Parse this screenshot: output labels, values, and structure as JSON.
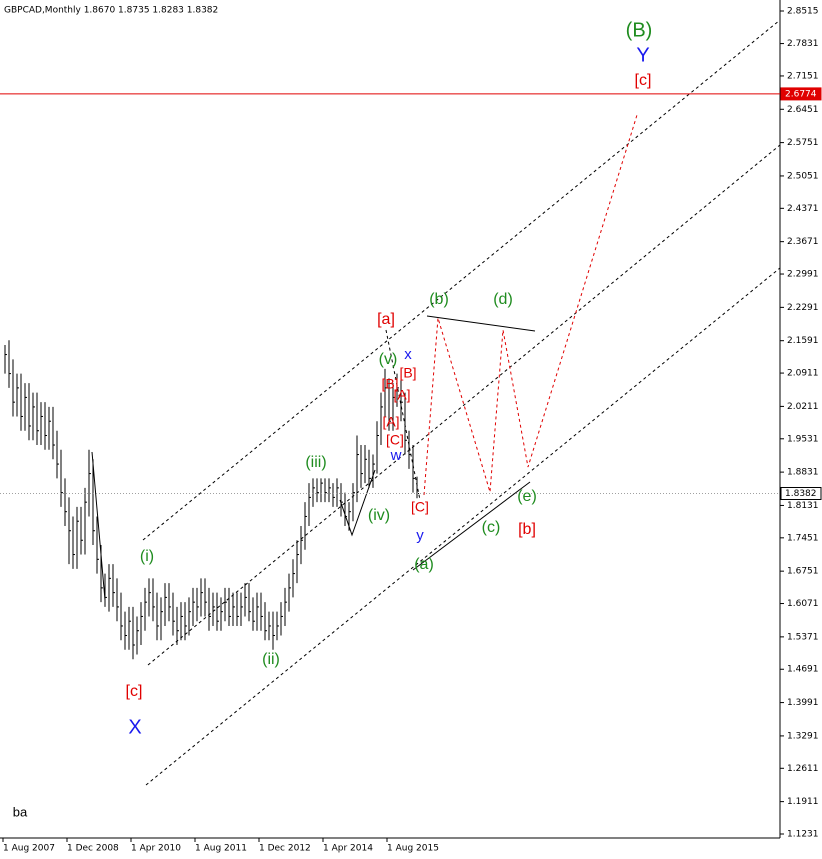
{
  "chart_data": {
    "type": "hlc",
    "header": "GBPCAD,Monthly  1.8670 1.8735 1.8283 1.8382",
    "color": "#000000",
    "high": [
      2.15,
      2.16,
      2.12,
      2.09,
      2.09,
      2.07,
      2.07,
      2.05,
      2.05,
      2.03,
      2.03,
      2.02,
      2.02,
      1.97,
      1.93,
      1.87,
      1.83,
      1.79,
      1.81,
      1.81,
      1.85,
      1.93,
      1.91,
      1.79,
      1.73,
      1.67,
      1.69,
      1.69,
      1.66,
      1.63,
      1.59,
      1.6,
      1.6,
      1.58,
      1.61,
      1.64,
      1.66,
      1.66,
      1.63,
      1.62,
      1.65,
      1.65,
      1.63,
      1.6,
      1.61,
      1.61,
      1.62,
      1.64,
      1.64,
      1.66,
      1.66,
      1.64,
      1.63,
      1.63,
      1.62,
      1.64,
      1.64,
      1.63,
      1.63,
      1.63,
      1.65,
      1.65,
      1.62,
      1.63,
      1.63,
      1.61,
      1.59,
      1.59,
      1.59,
      1.61,
      1.64,
      1.67,
      1.7,
      1.74,
      1.77,
      1.82,
      1.86,
      1.87,
      1.87,
      1.87,
      1.87,
      1.87,
      1.86,
      1.87,
      1.86,
      1.84,
      1.82,
      1.86,
      1.96,
      1.94,
      1.94,
      1.93,
      1.92,
      1.99,
      2.05,
      2.1,
      2.08,
      2.07,
      2.09,
      2.08,
      2.05,
      1.97,
      1.94,
      1.8735
    ],
    "low": [
      2.09,
      2.06,
      2.0,
      2.0,
      1.97,
      1.97,
      1.95,
      1.95,
      1.94,
      1.94,
      1.93,
      1.93,
      1.91,
      1.87,
      1.81,
      1.77,
      1.69,
      1.68,
      1.68,
      1.71,
      1.71,
      1.79,
      1.73,
      1.67,
      1.61,
      1.6,
      1.59,
      1.6,
      1.57,
      1.53,
      1.51,
      1.51,
      1.49,
      1.5,
      1.52,
      1.55,
      1.58,
      1.57,
      1.53,
      1.53,
      1.56,
      1.57,
      1.54,
      1.52,
      1.53,
      1.53,
      1.54,
      1.56,
      1.57,
      1.58,
      1.58,
      1.55,
      1.56,
      1.55,
      1.55,
      1.57,
      1.56,
      1.56,
      1.56,
      1.56,
      1.58,
      1.57,
      1.55,
      1.55,
      1.55,
      1.53,
      1.53,
      1.51,
      1.53,
      1.54,
      1.56,
      1.59,
      1.62,
      1.65,
      1.69,
      1.72,
      1.77,
      1.81,
      1.82,
      1.82,
      1.82,
      1.82,
      1.81,
      1.81,
      1.79,
      1.77,
      1.76,
      1.78,
      1.82,
      1.85,
      1.86,
      1.85,
      1.85,
      1.88,
      1.94,
      2.0,
      1.97,
      1.97,
      2.02,
      1.99,
      1.92,
      1.89,
      1.84,
      1.8283
    ],
    "close": [
      2.13,
      2.09,
      2.03,
      2.06,
      2.0,
      2.04,
      1.98,
      2.02,
      1.97,
      2.0,
      1.96,
      1.99,
      1.94,
      1.9,
      1.84,
      1.8,
      1.76,
      1.71,
      1.78,
      1.74,
      1.82,
      1.88,
      1.76,
      1.7,
      1.64,
      1.62,
      1.66,
      1.63,
      1.6,
      1.56,
      1.54,
      1.57,
      1.52,
      1.55,
      1.58,
      1.61,
      1.63,
      1.6,
      1.56,
      1.59,
      1.62,
      1.6,
      1.57,
      1.55,
      1.58,
      1.56,
      1.59,
      1.61,
      1.6,
      1.63,
      1.61,
      1.58,
      1.6,
      1.57,
      1.59,
      1.61,
      1.58,
      1.6,
      1.58,
      1.6,
      1.62,
      1.59,
      1.57,
      1.6,
      1.58,
      1.55,
      1.56,
      1.54,
      1.56,
      1.58,
      1.61,
      1.64,
      1.67,
      1.71,
      1.74,
      1.79,
      1.83,
      1.85,
      1.84,
      1.86,
      1.84,
      1.85,
      1.83,
      1.85,
      1.82,
      1.79,
      1.8,
      1.84,
      1.92,
      1.88,
      1.91,
      1.87,
      1.9,
      1.96,
      2.02,
      2.06,
      1.99,
      2.04,
      2.06,
      2.03,
      1.95,
      1.92,
      1.87,
      1.8382
    ],
    "xlim": [
      -1.25,
      193.75
    ],
    "xticks": [
      {
        "value": 0,
        "label": "1 Aug 2007"
      },
      {
        "value": 16,
        "label": "1 Dec 2008"
      },
      {
        "value": 32,
        "label": "1 Apr 2010"
      },
      {
        "value": 48,
        "label": "1 Aug 2011"
      },
      {
        "value": 64,
        "label": "1 Dec 2012"
      },
      {
        "value": 80,
        "label": "1 Apr 2014"
      },
      {
        "value": 96,
        "label": "1 Aug 2015"
      }
    ],
    "ylim": [
      1.1147,
      2.8746
    ],
    "yticks": [
      2.8515,
      2.7831,
      2.7151,
      2.6451,
      2.5751,
      2.5051,
      2.4371,
      2.3671,
      2.2991,
      2.2291,
      2.1591,
      2.0911,
      2.0211,
      1.9531,
      1.8831,
      1.8131,
      1.7451,
      1.6751,
      1.6071,
      1.5371,
      1.4691,
      1.3991,
      1.3291,
      1.2611,
      1.1911,
      1.1231
    ],
    "grid": false,
    "hlines": [
      {
        "value": 2.6774,
        "color": "#e00000"
      },
      {
        "value": 1.8382,
        "color": "#a0a0a0"
      }
    ],
    "annotations": [
      {
        "text": "(B)",
        "color": "#1f8c1f"
      },
      {
        "text": "Y",
        "color": "#1a1aee"
      },
      {
        "text": "[c]",
        "color": "#e00000"
      },
      {
        "text": "[a]",
        "color": "#e00000"
      },
      {
        "text": "(b)",
        "color": "#1f8c1f"
      },
      {
        "text": "(d)",
        "color": "#1f8c1f"
      },
      {
        "text": "x",
        "color": "#1a1aee"
      },
      {
        "text": "(v)",
        "color": "#1f8c1f"
      },
      {
        "text": "[B]",
        "color": "#e00000"
      },
      {
        "text": "[B]",
        "color": "#e00000"
      },
      {
        "text": "[A]",
        "color": "#e00000"
      },
      {
        "text": "[A]",
        "color": "#e00000"
      },
      {
        "text": "[C]",
        "color": "#e00000"
      },
      {
        "text": "w",
        "color": "#1a1aee"
      },
      {
        "text": "(iii)",
        "color": "#1f8c1f"
      },
      {
        "text": "(iv)",
        "color": "#1f8c1f"
      },
      {
        "text": "[C]",
        "color": "#e00000"
      },
      {
        "text": "y",
        "color": "#1a1aee"
      },
      {
        "text": "(a)",
        "color": "#1f8c1f"
      },
      {
        "text": "(c)",
        "color": "#1f8c1f"
      },
      {
        "text": "(e)",
        "color": "#1f8c1f"
      },
      {
        "text": "[b]",
        "color": "#e00000"
      },
      {
        "text": "(i)",
        "color": "#1f8c1f"
      },
      {
        "text": "(ii)",
        "color": "#1f8c1f"
      },
      {
        "text": "[c]",
        "color": "#e00000"
      },
      {
        "text": "X",
        "color": "#1a1aee"
      },
      {
        "text": "ba",
        "color": "#000000"
      }
    ]
  }
}
